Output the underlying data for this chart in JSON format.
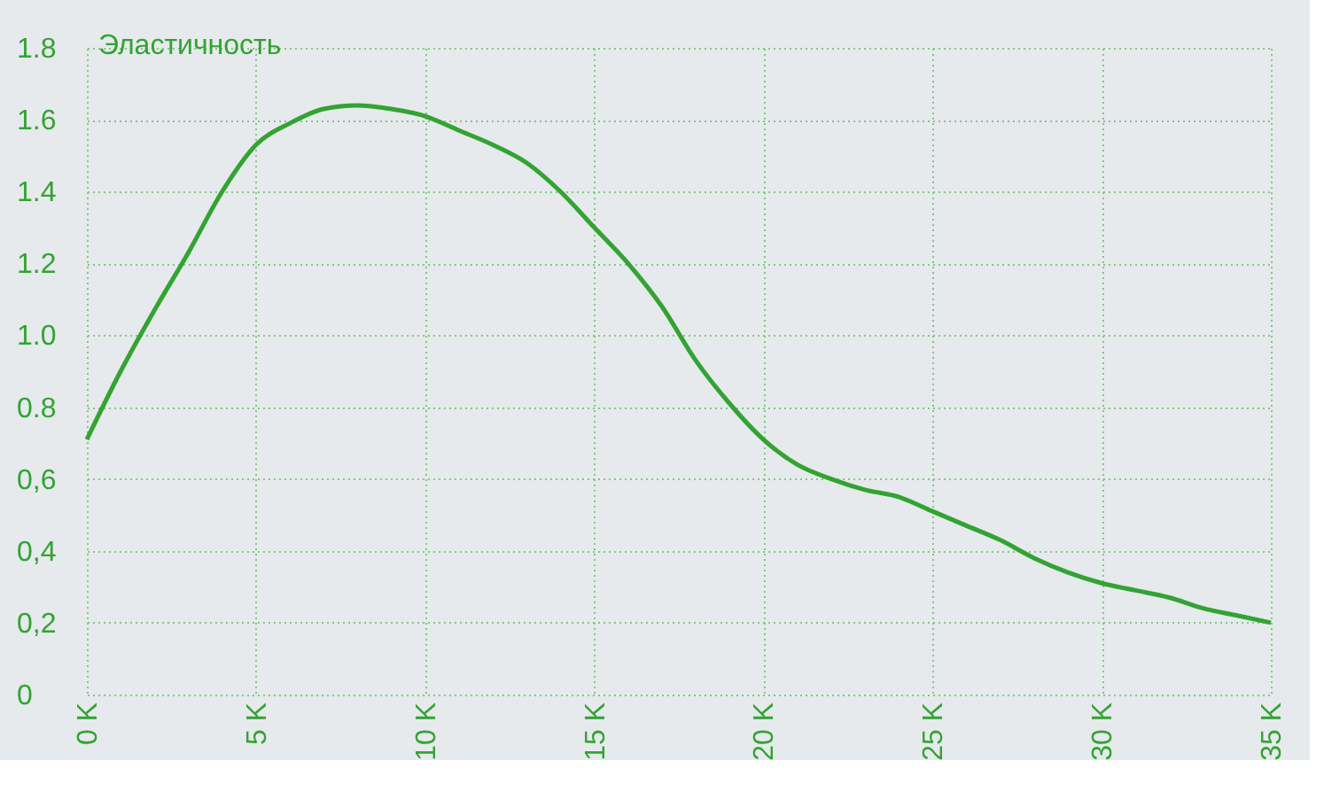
{
  "chart_data": {
    "type": "line",
    "ylabel": "Эластичность",
    "x": [
      0,
      1,
      2,
      3,
      4,
      5,
      6,
      7,
      8,
      9,
      10,
      11,
      12,
      13,
      14,
      15,
      16,
      17,
      18,
      19,
      20,
      21,
      22,
      23,
      24,
      25,
      26,
      27,
      28,
      29,
      30,
      31,
      32,
      33,
      34,
      35
    ],
    "series": [
      {
        "color": "#33a333",
        "values": [
          0.71,
          0.9,
          1.07,
          1.23,
          1.4,
          1.53,
          1.59,
          1.63,
          1.64,
          1.63,
          1.61,
          1.57,
          1.53,
          1.48,
          1.4,
          1.3,
          1.2,
          1.08,
          0.93,
          0.81,
          0.71,
          0.64,
          0.6,
          0.57,
          0.55,
          0.51,
          0.47,
          0.43,
          0.38,
          0.34,
          0.31,
          0.29,
          0.27,
          0.24,
          0.22,
          0.2
        ]
      }
    ],
    "xlim": [
      0,
      35
    ],
    "xticks": [
      {
        "value": 0,
        "label": "0 K"
      },
      {
        "value": 5,
        "label": "5 K"
      },
      {
        "value": 10,
        "label": "10 K"
      },
      {
        "value": 15,
        "label": "15 K"
      },
      {
        "value": 20,
        "label": "20 K"
      },
      {
        "value": 25,
        "label": "25 K"
      },
      {
        "value": 30,
        "label": "30 K"
      },
      {
        "value": 35,
        "label": "35 K"
      }
    ],
    "ylim": [
      0,
      1.8
    ],
    "yticks": [
      0,
      {
        "value": 0.2,
        "label": "0,2"
      },
      {
        "value": 0.4,
        "label": "0,4"
      },
      {
        "value": 0.6,
        "label": "0,6"
      },
      {
        "value": 0.8,
        "label": "0.8"
      },
      {
        "value": 1.0,
        "label": "1.0"
      },
      {
        "value": 1.2,
        "label": "1.2"
      },
      {
        "value": 1.4,
        "label": "1.4"
      },
      {
        "value": 1.6,
        "label": "1.6"
      },
      {
        "value": 1.8,
        "label": "1.8"
      }
    ],
    "grid": true,
    "legend": false,
    "marker": "none",
    "line_style": "solid"
  }
}
